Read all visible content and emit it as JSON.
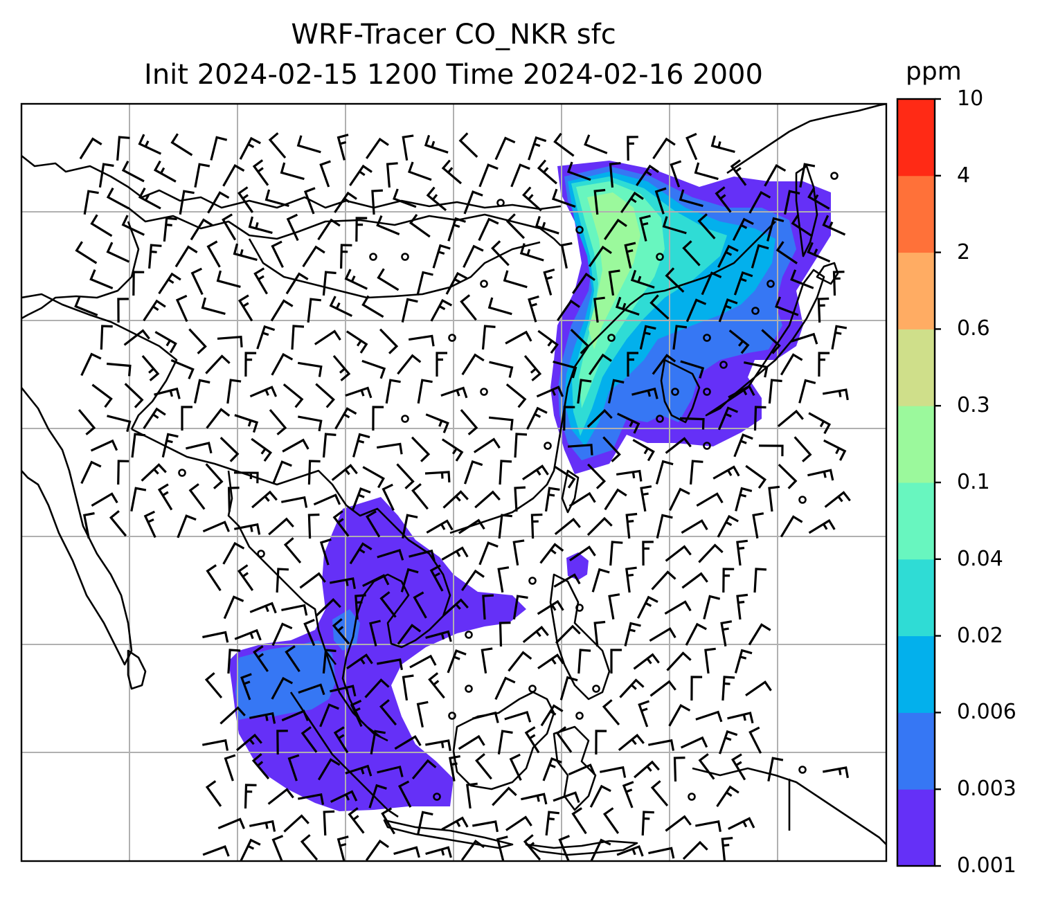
{
  "title": {
    "line1": "WRF-Tracer CO_NKR sfc",
    "line2": "Init 2024-02-15 1200 Time 2024-02-16 2000"
  },
  "colorbar": {
    "unit": "ppm",
    "ticks": [
      "0.001",
      "0.003",
      "0.006",
      "0.02",
      "0.04",
      "0.1",
      "0.3",
      "0.6",
      "2",
      "4",
      "10"
    ],
    "colors": [
      "#6530f7",
      "#3677f4",
      "#03b0ec",
      "#2fdcd5",
      "#68f6bf",
      "#9bf99c",
      "#cfdf8a",
      "#ffac63",
      "#ff7139",
      "#ff2a15"
    ]
  },
  "map": {
    "grid": true,
    "barb_color": "#000000",
    "coastline_color": "#000000"
  }
}
